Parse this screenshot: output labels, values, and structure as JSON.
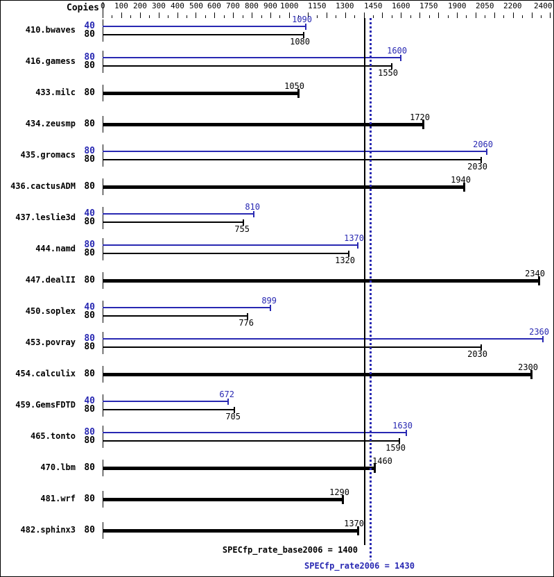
{
  "header": {
    "copies_label": "Copies"
  },
  "colors": {
    "peak_blue": "#2828b2",
    "base_black": "#000000",
    "background": "#ffffff"
  },
  "chart_data": {
    "type": "bar",
    "orientation": "horizontal",
    "title": "",
    "xlabel": "",
    "ylabel": "Copies",
    "xlim": [
      0,
      2400
    ],
    "grid": false,
    "minor_tick_step": 50,
    "major_tick_step": 100,
    "axis_tick_labels": [
      0,
      100,
      200,
      300,
      400,
      500,
      600,
      700,
      800,
      900,
      1000,
      1150,
      1300,
      1450,
      1600,
      1750,
      1900,
      2050,
      2200,
      2400
    ],
    "series_colors": {
      "peak": "#2828b2",
      "base": "#000000",
      "single": "#000000"
    },
    "groups": [
      {
        "benchmark": "410.bwaves",
        "bars": [
          {
            "series": "peak",
            "copies": 40,
            "value": 1090
          },
          {
            "series": "base",
            "copies": 80,
            "value": 1080
          }
        ]
      },
      {
        "benchmark": "416.gamess",
        "bars": [
          {
            "series": "peak",
            "copies": 80,
            "value": 1600
          },
          {
            "series": "base",
            "copies": 80,
            "value": 1550
          }
        ]
      },
      {
        "benchmark": "433.milc",
        "bars": [
          {
            "series": "single",
            "copies": 80,
            "value": 1050
          }
        ]
      },
      {
        "benchmark": "434.zeusmp",
        "bars": [
          {
            "series": "single",
            "copies": 80,
            "value": 1720
          }
        ]
      },
      {
        "benchmark": "435.gromacs",
        "bars": [
          {
            "series": "peak",
            "copies": 80,
            "value": 2060
          },
          {
            "series": "base",
            "copies": 80,
            "value": 2030
          }
        ]
      },
      {
        "benchmark": "436.cactusADM",
        "bars": [
          {
            "series": "single",
            "copies": 80,
            "value": 1940
          }
        ]
      },
      {
        "benchmark": "437.leslie3d",
        "bars": [
          {
            "series": "peak",
            "copies": 40,
            "value": 810
          },
          {
            "series": "base",
            "copies": 80,
            "value": 755
          }
        ]
      },
      {
        "benchmark": "444.namd",
        "bars": [
          {
            "series": "peak",
            "copies": 80,
            "value": 1370
          },
          {
            "series": "base",
            "copies": 80,
            "value": 1320
          }
        ]
      },
      {
        "benchmark": "447.dealII",
        "bars": [
          {
            "series": "single",
            "copies": 80,
            "value": 2340
          }
        ]
      },
      {
        "benchmark": "450.soplex",
        "bars": [
          {
            "series": "peak",
            "copies": 40,
            "value": 899
          },
          {
            "series": "base",
            "copies": 80,
            "value": 776
          }
        ]
      },
      {
        "benchmark": "453.povray",
        "bars": [
          {
            "series": "peak",
            "copies": 80,
            "value": 2360
          },
          {
            "series": "base",
            "copies": 80,
            "value": 2030
          }
        ]
      },
      {
        "benchmark": "454.calculix",
        "bars": [
          {
            "series": "single",
            "copies": 80,
            "value": 2300
          }
        ]
      },
      {
        "benchmark": "459.GemsFDTD",
        "bars": [
          {
            "series": "peak",
            "copies": 40,
            "value": 672
          },
          {
            "series": "base",
            "copies": 80,
            "value": 705
          }
        ]
      },
      {
        "benchmark": "465.tonto",
        "bars": [
          {
            "series": "peak",
            "copies": 80,
            "value": 1630
          },
          {
            "series": "base",
            "copies": 80,
            "value": 1590
          }
        ]
      },
      {
        "benchmark": "470.lbm",
        "bars": [
          {
            "series": "single",
            "copies": 80,
            "value": 1460
          }
        ]
      },
      {
        "benchmark": "481.wrf",
        "bars": [
          {
            "series": "single",
            "copies": 80,
            "value": 1290
          }
        ]
      },
      {
        "benchmark": "482.sphinx3",
        "bars": [
          {
            "series": "single",
            "copies": 80,
            "value": 1370
          }
        ]
      }
    ],
    "reference_lines": [
      {
        "name": "base",
        "value": 1400,
        "style": "solid",
        "color": "#000000",
        "label": "SPECfp_rate_base2006 = 1400"
      },
      {
        "name": "peak",
        "value": 1430,
        "style": "dotted",
        "color": "#2828b2",
        "label": "SPECfp_rate2006 = 1430"
      }
    ]
  }
}
